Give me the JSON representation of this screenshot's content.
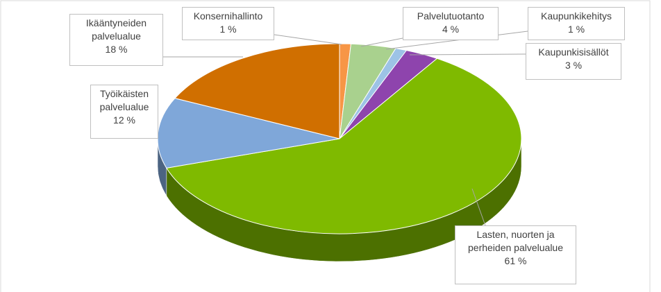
{
  "chart_data": {
    "type": "pie3d",
    "categories": [
      "Konsernihallinto",
      "Palvelutuotanto",
      "Kaupunkikehitys",
      "Kaupunkisisällöt",
      "Lasten, nuorten ja\nperheiden palvelualue",
      "Työikäisten\npalvelualue",
      "Ikääntyneiden\npalvelualue"
    ],
    "values": [
      1,
      4,
      1,
      3,
      61,
      12,
      18
    ],
    "value_labels": [
      "1 %",
      "4 %",
      "1 %",
      "3 %",
      "61 %",
      "12 %",
      "18 %"
    ],
    "colors": [
      "#f79646",
      "#a9d18e",
      "#9dc3e6",
      "#8e44ad",
      "#7fba00",
      "#7fa7d9",
      "#d06f00"
    ]
  }
}
